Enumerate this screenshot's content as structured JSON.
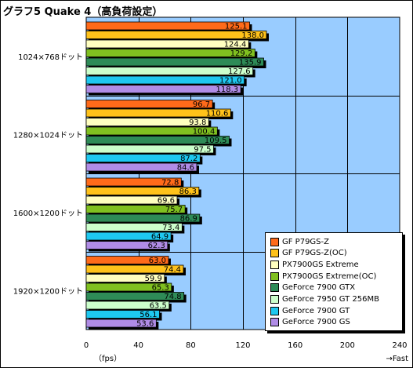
{
  "chart_data": {
    "type": "bar",
    "orientation": "horizontal",
    "title": "グラフ5  Quake 4（高負荷設定）",
    "categories": [
      "1024×768ドット",
      "1280×1024ドット",
      "1600×1200ドット",
      "1920×1200ドット"
    ],
    "series": [
      {
        "name": "GF P79GS-Z",
        "color": "#ff6a1a",
        "values": [
          125.1,
          96.7,
          72.8,
          63.0
        ]
      },
      {
        "name": "GF P79GS-Z(OC)",
        "color": "#ffc21a",
        "values": [
          138.0,
          110.6,
          86.3,
          74.4
        ]
      },
      {
        "name": "PX7900GS Extreme",
        "color": "#ffffc0",
        "values": [
          124.4,
          93.8,
          69.6,
          59.9
        ]
      },
      {
        "name": "PX7900GS Extreme(OC)",
        "color": "#80c020",
        "values": [
          129.2,
          100.4,
          75.7,
          65.3
        ]
      },
      {
        "name": "GeForce 7900 GTX",
        "color": "#2e8b57",
        "values": [
          135.9,
          109.5,
          86.9,
          74.8
        ]
      },
      {
        "name": "GeForce 7950 GT 256MB",
        "color": "#ccffcc",
        "values": [
          127.6,
          97.5,
          73.4,
          63.5
        ]
      },
      {
        "name": "GeForce 7900 GT",
        "color": "#1ec8f0",
        "values": [
          121.0,
          87.2,
          64.9,
          56.1
        ]
      },
      {
        "name": "GeForce 7900 GS",
        "color": "#b08ce6",
        "values": [
          118.3,
          84.6,
          62.3,
          53.6
        ]
      }
    ],
    "xlim": [
      0,
      240
    ],
    "xticks": [
      0,
      40,
      80,
      120,
      160,
      200,
      240
    ],
    "xlabel": "（fps）",
    "direction_label": "→Fast",
    "grid": true,
    "legend_position": "bottom-right",
    "colors": {
      "plot_background": "#99ccff",
      "bar_shadow": "#000000",
      "grid": "#000000"
    }
  }
}
